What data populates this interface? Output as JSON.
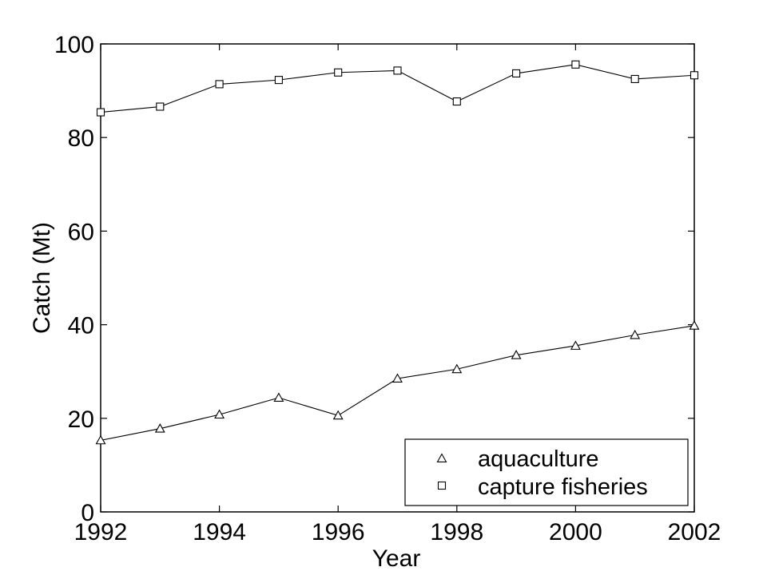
{
  "chart_data": {
    "type": "line",
    "title": "",
    "xlabel": "Year",
    "ylabel": "Catch (Mt)",
    "xlim": [
      1992,
      2002
    ],
    "ylim": [
      0,
      100
    ],
    "xticks": [
      1992,
      1994,
      1996,
      1998,
      2000,
      2002
    ],
    "yticks": [
      0,
      20,
      40,
      60,
      80,
      100
    ],
    "grid": false,
    "legend_position": "bottom-right",
    "x": [
      1992,
      1993,
      1994,
      1995,
      1996,
      1997,
      1998,
      1999,
      2000,
      2001,
      2002
    ],
    "series": [
      {
        "name": "aquaculture",
        "marker": "triangle",
        "color": "#000000",
        "values": [
          15.3,
          17.8,
          20.8,
          24.4,
          20.6,
          28.5,
          30.5,
          33.5,
          35.5,
          37.8,
          39.8
        ]
      },
      {
        "name": "capture fisheries",
        "marker": "square",
        "color": "#000000",
        "values": [
          85.4,
          86.6,
          91.4,
          92.3,
          93.9,
          94.3,
          87.7,
          93.7,
          95.6,
          92.5,
          93.3
        ]
      }
    ]
  }
}
